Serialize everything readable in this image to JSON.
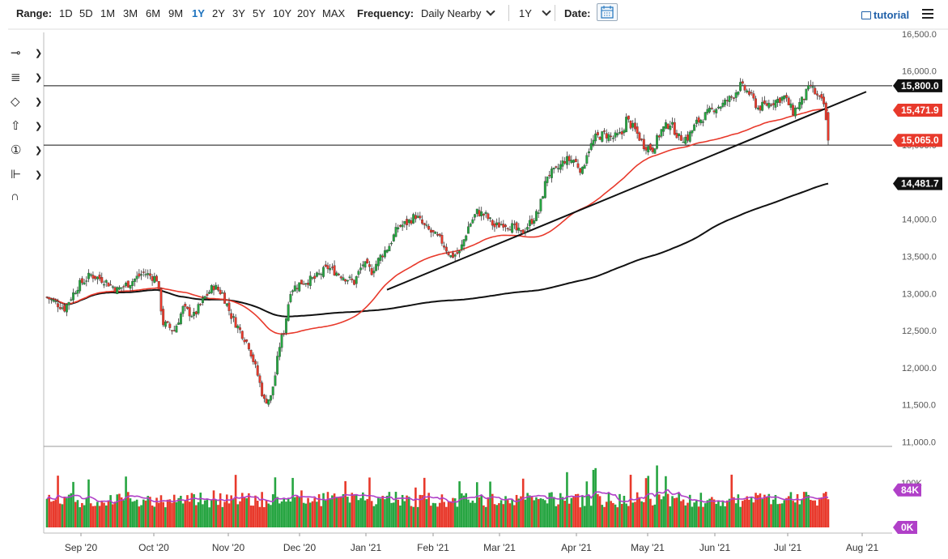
{
  "toolbar": {
    "range_label": "Range:",
    "ranges": [
      "1D",
      "5D",
      "1M",
      "3M",
      "6M",
      "9M",
      "1Y",
      "2Y",
      "3Y",
      "5Y",
      "10Y",
      "20Y",
      "MAX"
    ],
    "active_range": "1Y",
    "frequency_label": "Frequency:",
    "frequency_value": "Daily Nearby",
    "period_value": "1Y",
    "date_label": "Date:",
    "tutorial_label": "tutorial"
  },
  "colors": {
    "up": "#26a541",
    "down": "#e8392b",
    "ma50": "#e8392b",
    "ma200": "#111111",
    "volume_ma": "#b040c8",
    "accent": "#1e73be"
  },
  "chart_data": [
    {
      "type": "candlestick",
      "y_ticks": [
        "16,500.0",
        "16,000.0",
        "15,500.0",
        "15,000.0",
        "14,500.0",
        "14,000.0",
        "13,500.0",
        "13,000.0",
        "12,500.0",
        "12,000.0",
        "11,500.0",
        "11,000.0"
      ],
      "ylim": [
        10950,
        16520
      ],
      "x_labels": [
        "Sep '20",
        "Oct '20",
        "Nov '20",
        "Dec '20",
        "Jan '21",
        "Feb '21",
        "Mar '21",
        "Apr '21",
        "May '21",
        "Jun '21",
        "Jul '21",
        "Aug '21"
      ],
      "price_tags": [
        {
          "label": "15,800.0",
          "color": "#111111"
        },
        {
          "label": "15,471.9",
          "color": "#e8392b"
        },
        {
          "label": "15,065.0",
          "color": "#e8392b"
        },
        {
          "label": "14,481.7",
          "color": "#111111"
        }
      ],
      "horizontal_levels": [
        15800,
        15000
      ],
      "trendline": {
        "from": {
          "month": "Jan '21 (late)",
          "y": 13050
        },
        "to": {
          "month": "Jul '21 (late)",
          "y": 15720
        }
      },
      "close_path": [
        [
          0,
          12950
        ],
        [
          8,
          12800
        ],
        [
          14,
          13100
        ],
        [
          20,
          13250
        ],
        [
          26,
          13180
        ],
        [
          32,
          13050
        ],
        [
          38,
          13150
        ],
        [
          44,
          13280
        ],
        [
          50,
          13200
        ],
        [
          53,
          12600
        ],
        [
          58,
          12500
        ],
        [
          62,
          12800
        ],
        [
          67,
          12700
        ],
        [
          72,
          12950
        ],
        [
          76,
          13100
        ],
        [
          80,
          13000
        ],
        [
          84,
          12700
        ],
        [
          88,
          12500
        ],
        [
          92,
          12300
        ],
        [
          96,
          11900
        ],
        [
          99,
          11550
        ],
        [
          102,
          11600
        ],
        [
          104,
          11900
        ],
        [
          106,
          12300
        ],
        [
          108,
          12500
        ],
        [
          111,
          13050
        ],
        [
          116,
          13150
        ],
        [
          122,
          13200
        ],
        [
          128,
          13350
        ],
        [
          134,
          13250
        ],
        [
          140,
          13150
        ],
        [
          144,
          13400
        ],
        [
          148,
          13300
        ],
        [
          152,
          13500
        ],
        [
          156,
          13650
        ],
        [
          160,
          13900
        ],
        [
          164,
          13950
        ],
        [
          168,
          14050
        ],
        [
          172,
          13900
        ],
        [
          176,
          13800
        ],
        [
          180,
          13700
        ],
        [
          184,
          13500
        ],
        [
          188,
          13550
        ],
        [
          192,
          13900
        ],
        [
          196,
          14100
        ],
        [
          200,
          14050
        ],
        [
          204,
          13900
        ],
        [
          208,
          13950
        ],
        [
          212,
          13900
        ],
        [
          216,
          13800
        ],
        [
          220,
          13950
        ],
        [
          224,
          14100
        ],
        [
          228,
          14600
        ],
        [
          232,
          14650
        ],
        [
          236,
          14800
        ],
        [
          240,
          14800
        ],
        [
          244,
          14650
        ],
        [
          246,
          14900
        ],
        [
          250,
          15100
        ],
        [
          254,
          15150
        ],
        [
          258,
          15100
        ],
        [
          262,
          15150
        ],
        [
          264,
          15350
        ],
        [
          268,
          15200
        ],
        [
          272,
          15000
        ],
        [
          276,
          14950
        ],
        [
          280,
          15200
        ],
        [
          284,
          15300
        ],
        [
          288,
          15100
        ],
        [
          292,
          15100
        ],
        [
          296,
          15300
        ],
        [
          300,
          15400
        ],
        [
          304,
          15500
        ],
        [
          308,
          15550
        ],
        [
          312,
          15650
        ],
        [
          316,
          15800
        ],
        [
          320,
          15700
        ],
        [
          324,
          15500
        ],
        [
          328,
          15550
        ],
        [
          332,
          15600
        ],
        [
          336,
          15650
        ],
        [
          340,
          15450
        ],
        [
          344,
          15600
        ],
        [
          348,
          15800
        ],
        [
          351,
          15650
        ],
        [
          354,
          15550
        ],
        [
          356,
          15065
        ]
      ],
      "ma50_end": 15471.9,
      "ma200_end": 14481.7
    },
    {
      "type": "bar",
      "name": "Volume",
      "y_ticks": [
        "100K",
        "0K"
      ],
      "current_tag": "84K",
      "zero_tag": "0K"
    }
  ]
}
